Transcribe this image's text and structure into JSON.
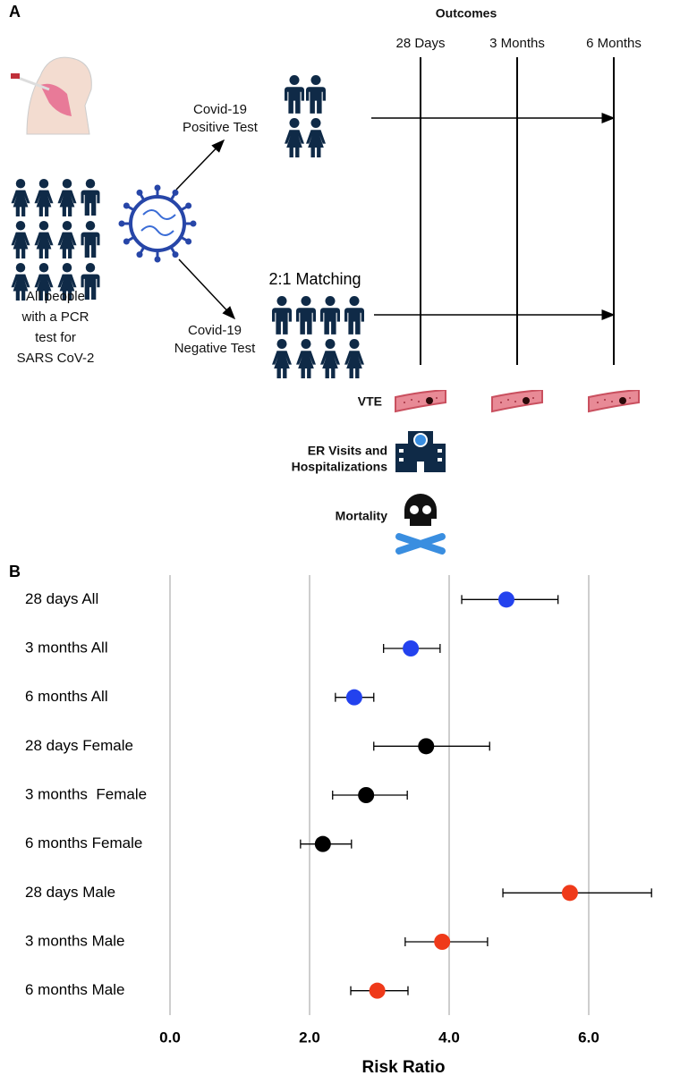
{
  "panel_a": {
    "label": "A",
    "outcomes": "Outcomes",
    "timepoints": [
      "28 Days",
      "3 Months",
      "6 Months"
    ],
    "positive": [
      "Covid-19",
      "Positive Test"
    ],
    "negative": [
      "Covid-19",
      "Negative Test"
    ],
    "matching": "2:1 Matching",
    "population": [
      "All people",
      "with a PCR",
      "test for",
      "SARS CoV-2"
    ],
    "outcome_rows": [
      [
        "VTE"
      ],
      [
        "ER Visits and",
        "Hospitalizations"
      ],
      [
        "Mortality"
      ]
    ]
  },
  "chart_data": {
    "type": "forest",
    "panel_label": "B",
    "xlabel": "Risk Ratio",
    "categories": [
      "28 days All",
      "3 months All",
      "6 months All",
      "28 days Female",
      "3 months  Female",
      "6 months Female",
      "28 days Male",
      "3 months Male",
      "6 months Male"
    ],
    "values": [
      4.82,
      3.45,
      2.64,
      3.67,
      2.81,
      2.19,
      5.73,
      3.9,
      2.97
    ],
    "lower": [
      4.18,
      3.06,
      2.37,
      2.92,
      2.33,
      1.87,
      4.77,
      3.37,
      2.59
    ],
    "upper": [
      5.56,
      3.87,
      2.92,
      4.58,
      3.4,
      2.6,
      6.9,
      4.55,
      3.41
    ],
    "colors": [
      "#2342ee",
      "#2342ee",
      "#2342ee",
      "#000000",
      "#000000",
      "#000000",
      "#ef3a1a",
      "#ef3a1a",
      "#ef3a1a"
    ],
    "xlim": [
      0,
      7.3
    ],
    "xticks": [
      {
        "value": 0,
        "label": "0.0"
      },
      {
        "value": 2,
        "label": "2.0"
      },
      {
        "value": 4,
        "label": "4.0"
      },
      {
        "value": 6,
        "label": "6.0"
      }
    ],
    "grid": true
  }
}
